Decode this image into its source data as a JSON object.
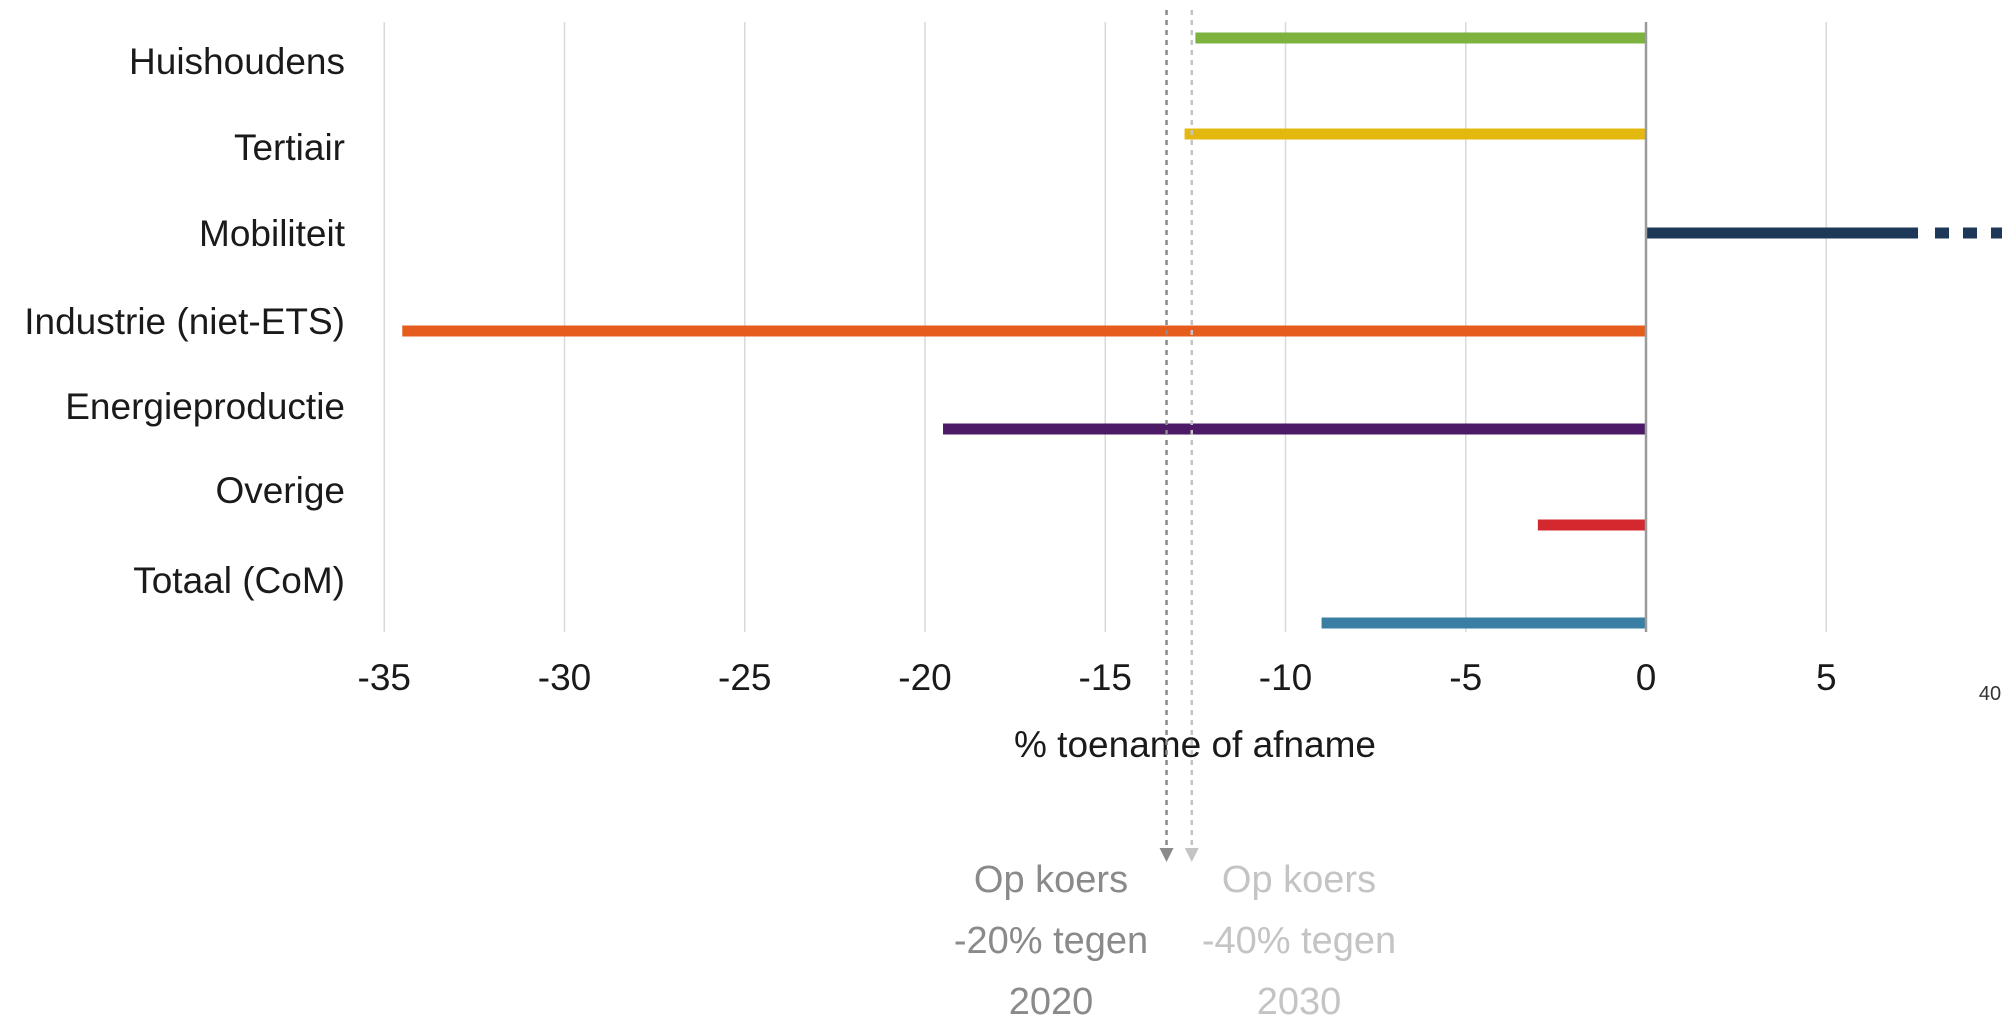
{
  "chart_data": {
    "type": "bar",
    "orientation": "horizontal",
    "title": "",
    "xlabel": "% toename of afname",
    "ylabel": "",
    "xlim": [
      -35,
      10
    ],
    "xticks": [
      -35,
      -30,
      -25,
      -20,
      -15,
      -10,
      -5,
      0,
      5
    ],
    "xtick_labels": [
      "-35",
      "-30",
      "-25",
      "-20",
      "-15",
      "-10",
      "-5",
      "0",
      "5"
    ],
    "grid": true,
    "legend": "none",
    "categories": [
      "Huishoudens",
      "Tertiair",
      "Mobiliteit",
      "Industrie (niet-ETS)",
      "Energieproductie",
      "Overige",
      "Totaal (CoM)"
    ],
    "values": [
      -12.5,
      -12.8,
      40,
      -34.5,
      -19.5,
      -3,
      -9
    ],
    "colors": [
      "#7db23f",
      "#e4b90f",
      "#1d3957",
      "#e65c1d",
      "#4c1a67",
      "#d3282e",
      "#3a7fa3"
    ],
    "axis_break": {
      "category": "Mobiliteit",
      "label": "40"
    },
    "reference_lines": [
      {
        "x": -13.3,
        "lines": [
          "Op koers",
          "-20% tegen",
          "2020"
        ],
        "color": "#8a8a8a"
      },
      {
        "x": -12.6,
        "lines": [
          "Op koers",
          "-40% tegen",
          "2030"
        ],
        "color": "#c4c4c4"
      }
    ]
  }
}
